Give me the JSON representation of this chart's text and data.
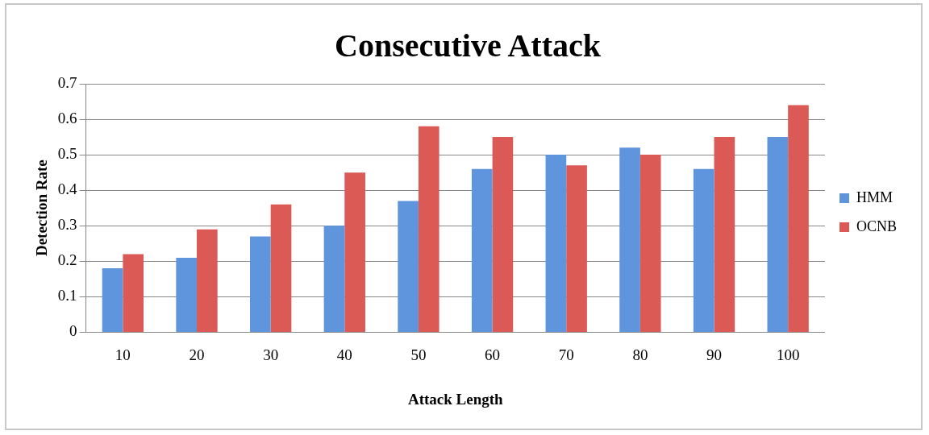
{
  "chart_data": {
    "type": "bar",
    "title": "Consecutive Attack",
    "xlabel": "Attack Length",
    "ylabel": "Detection Rate",
    "categories": [
      "10",
      "20",
      "30",
      "40",
      "50",
      "60",
      "70",
      "80",
      "90",
      "100"
    ],
    "series": [
      {
        "name": "HMM",
        "color": "#5f95dc",
        "values": [
          0.18,
          0.21,
          0.27,
          0.3,
          0.37,
          0.46,
          0.5,
          0.52,
          0.46,
          0.55
        ]
      },
      {
        "name": "OCNB",
        "color": "#dc5a56",
        "values": [
          0.22,
          0.29,
          0.36,
          0.45,
          0.58,
          0.55,
          0.47,
          0.5,
          0.55,
          0.64
        ]
      }
    ],
    "ylim": [
      0,
      0.7
    ],
    "yticks": [
      0,
      0.1,
      0.2,
      0.3,
      0.4,
      0.5,
      0.6,
      0.7
    ],
    "grid": "y",
    "legend": "right"
  }
}
